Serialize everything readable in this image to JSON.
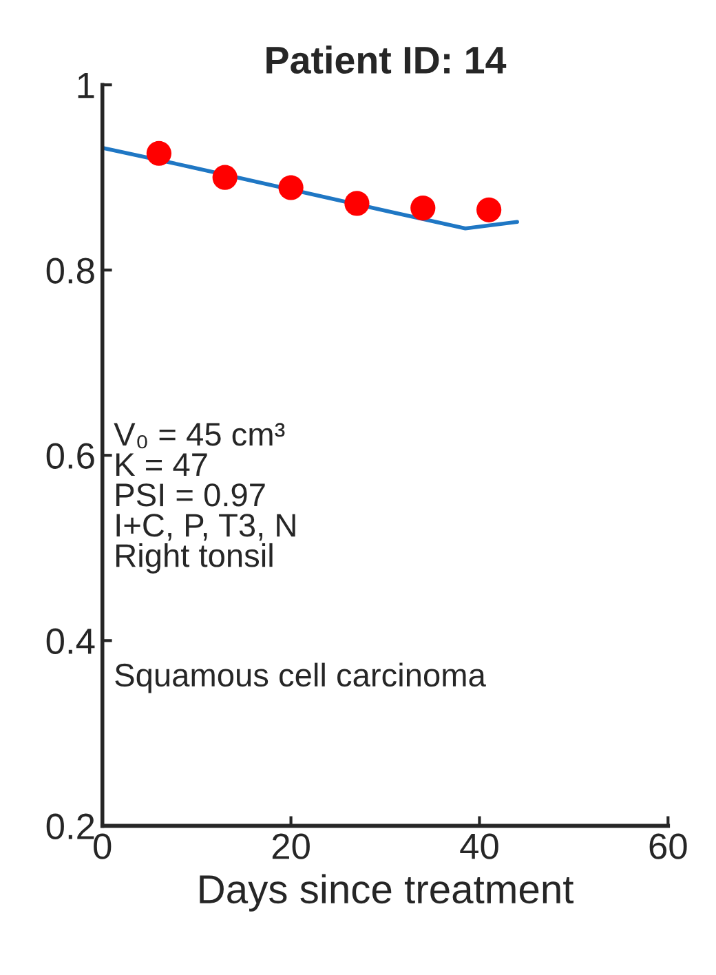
{
  "chart_data": {
    "type": "scatter",
    "title": "Patient ID: 14",
    "xlabel": "Days since treatment",
    "xlim": [
      0,
      60
    ],
    "xticks": [
      0,
      20,
      40,
      60
    ],
    "ylim": [
      0.2,
      1
    ],
    "yticks": [
      0.2,
      0.4,
      0.6,
      0.8,
      1
    ],
    "grid": false,
    "legend": false,
    "series": [
      {
        "type": "line",
        "color": "#1f77c4",
        "x": [
          0,
          9.5,
          16.5,
          23.5,
          30.5,
          38.5,
          44
        ],
        "values": [
          0.932,
          0.911,
          0.895,
          0.879,
          0.863,
          0.845,
          0.852
        ],
        "marker": "none"
      },
      {
        "color": "#ff0000",
        "x": [
          6,
          13,
          20,
          27,
          34,
          41
        ],
        "values": [
          0.926,
          0.9,
          0.889,
          0.872,
          0.867,
          0.865
        ],
        "marker": "circle"
      }
    ],
    "annotations": [
      "V₀ = 45 cm³\nK = 47\nPSI = 0.97\nI+C, P, T3, N\nRight tonsil",
      "Squamous cell carcinoma"
    ]
  }
}
